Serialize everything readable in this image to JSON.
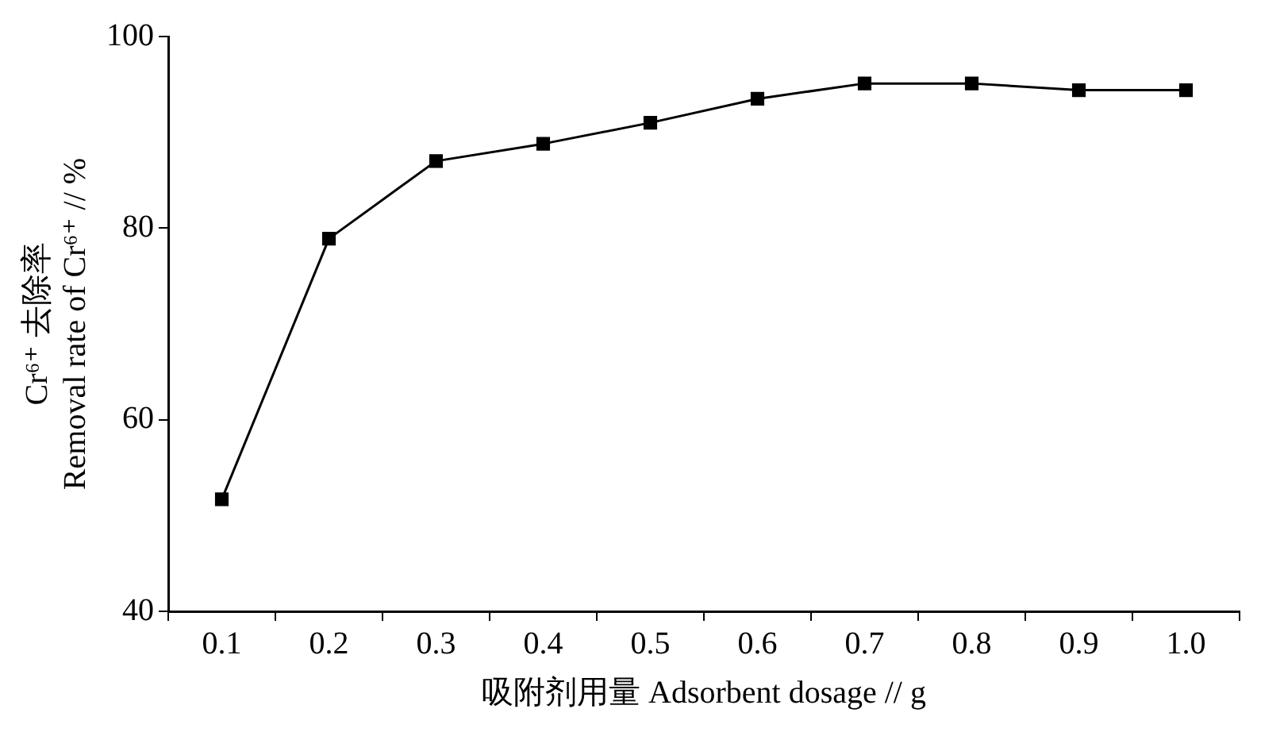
{
  "chart_data": {
    "type": "line",
    "xlabel": "吸附剂用量 Adsorbent dosage // g",
    "ylabel": "Cr⁶⁺ 去除率\nRemoval rate of Cr⁶⁺ // %",
    "categories": [
      "0.1",
      "0.2",
      "0.3",
      "0.4",
      "0.5",
      "0.6",
      "0.7",
      "0.8",
      "0.9",
      "1.0"
    ],
    "series": [
      {
        "color": "#000000",
        "values": [
          51.7,
          78.9,
          87.0,
          88.8,
          91.0,
          93.5,
          95.1,
          95.1,
          94.4,
          94.4
        ]
      }
    ],
    "ylim": [
      40,
      100
    ],
    "yticks": [
      40,
      60,
      80,
      100
    ],
    "grid": false,
    "legend": false,
    "marker": "square",
    "line_style": "solid"
  }
}
